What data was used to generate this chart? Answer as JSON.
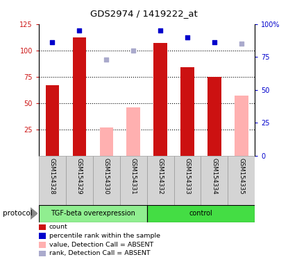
{
  "title": "GDS2974 / 1419222_at",
  "samples": [
    "GSM154328",
    "GSM154329",
    "GSM154330",
    "GSM154331",
    "GSM154332",
    "GSM154333",
    "GSM154334",
    "GSM154335"
  ],
  "red_bars": [
    67,
    112,
    null,
    null,
    107,
    84,
    75,
    null
  ],
  "pink_bars": [
    null,
    null,
    27,
    46,
    null,
    null,
    null,
    57
  ],
  "blue_squares": [
    86,
    95,
    null,
    null,
    95,
    90,
    86,
    null
  ],
  "light_blue_squares": [
    null,
    null,
    73,
    80,
    null,
    null,
    null,
    85
  ],
  "ylim_left": [
    0,
    125
  ],
  "ylim_right": [
    0,
    100
  ],
  "yticks_left": [
    25,
    50,
    75,
    100,
    125
  ],
  "ytick_labels_left": [
    "25",
    "50",
    "75",
    "100",
    "125"
  ],
  "yticks_right": [
    0,
    25,
    50,
    75,
    100
  ],
  "ytick_labels_right": [
    "0",
    "25",
    "50",
    "75",
    "100%"
  ],
  "red_color": "#CC1111",
  "pink_color": "#FFB0B0",
  "blue_color": "#0000CC",
  "light_blue_color": "#AAAACC",
  "bar_width": 0.5,
  "tgf_color": "#90EE90",
  "ctrl_color": "#44DD44",
  "legend_items": [
    {
      "label": "count",
      "color": "#CC1111"
    },
    {
      "label": "percentile rank within the sample",
      "color": "#0000CC"
    },
    {
      "label": "value, Detection Call = ABSENT",
      "color": "#FFB0B0"
    },
    {
      "label": "rank, Detection Call = ABSENT",
      "color": "#AAAACC"
    }
  ]
}
